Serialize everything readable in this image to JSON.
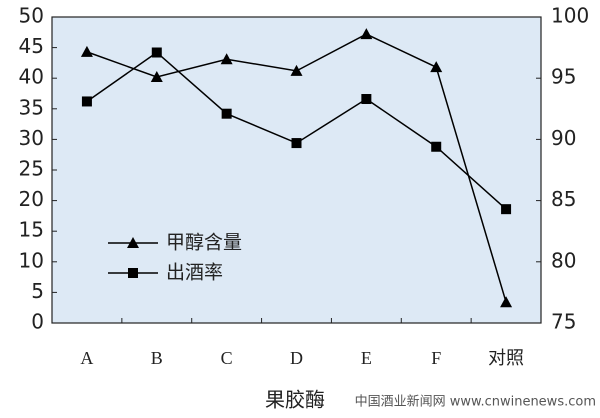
{
  "chart_data": {
    "type": "line",
    "x_label": "果胶酶",
    "categories": [
      "A",
      "B",
      "C",
      "D",
      "E",
      "F",
      "对照"
    ],
    "series": [
      {
        "name": "甲醇含量",
        "color": "#000000",
        "marker": "triangle",
        "values": [
          44.3,
          40.2,
          43.1,
          41.2,
          47.2,
          41.8,
          3.4
        ]
      },
      {
        "name": "出酒率",
        "color": "#000000",
        "marker": "square",
        "axis": "y2",
        "values": [
          93.1,
          97.1,
          92.1,
          89.7,
          93.3,
          89.4,
          84.3
        ]
      }
    ],
    "ylim": [
      0,
      50
    ],
    "yticks": [
      0,
      5,
      10,
      15,
      20,
      25,
      30,
      35,
      40,
      45,
      50
    ],
    "y2lim": [
      75,
      100
    ],
    "y2ticks": [
      75,
      80,
      85,
      90,
      95,
      100
    ],
    "plot_background": "#dde9f5",
    "watermark": "中国酒业新闻网 www.cnwinenews.com"
  }
}
